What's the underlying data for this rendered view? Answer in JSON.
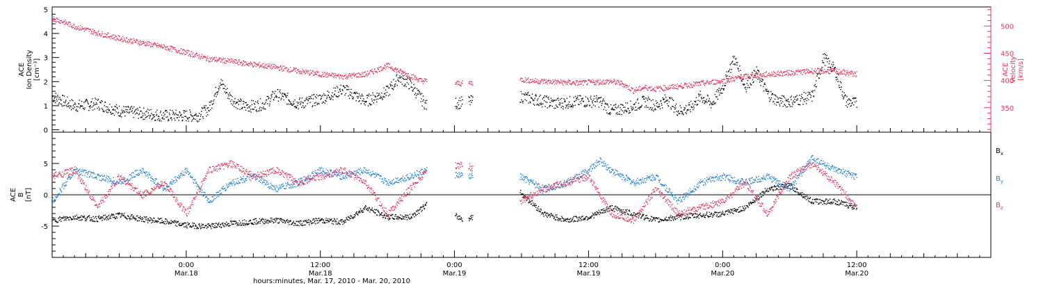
{
  "colors": {
    "axis": "#000000",
    "bx": "#000000",
    "by": "#1e7fe0",
    "bz": "#e8345c",
    "density": "#000000",
    "velocity": "#e8345c"
  },
  "x_axis": {
    "title": "hours:minutes, Mar. 17, 2010 - Mar. 20, 2010",
    "ticks": [
      {
        "time": "0:00",
        "date": "Mar.18",
        "hours": 24
      },
      {
        "time": "12:00",
        "date": "Mar.18",
        "hours": 36
      },
      {
        "time": "0:00",
        "date": "Mar.19",
        "hours": 48
      },
      {
        "time": "12:00",
        "date": "Mar.19",
        "hours": 60
      },
      {
        "time": "0:00",
        "date": "Mar.20",
        "hours": 72
      },
      {
        "time": "12:00",
        "date": "Mar.20",
        "hours": 84
      }
    ]
  },
  "chart_data": [
    {
      "type": "scatter",
      "panel": "top",
      "ylabel": [
        "ACE",
        "Ion Density",
        "[cm⁻³]"
      ],
      "y2label": [
        "ACE",
        "Velocity",
        "[km/s]"
      ],
      "xlim": [
        12,
        96
      ],
      "ylim": [
        -0.1,
        5.1
      ],
      "y2lim": [
        305,
        535
      ],
      "yticks": [
        "0",
        "1",
        "2",
        "3",
        "4",
        "5"
      ],
      "y2ticks": [
        "350",
        "400",
        "450",
        "500"
      ],
      "data_gaps_hours": [
        [
          45.5,
          48
        ],
        [
          48.7,
          49.2
        ],
        [
          49.6,
          53.8
        ]
      ],
      "series": [
        {
          "name": "Ion Density",
          "axis": "left",
          "x": [
            12,
            14,
            16,
            18,
            20,
            22,
            24,
            25,
            26,
            27,
            28,
            29,
            30,
            31,
            32,
            34,
            36,
            38,
            40,
            42,
            43,
            44,
            45,
            45.5,
            53.8,
            55,
            57,
            59,
            61,
            62,
            63,
            64,
            65,
            66,
            67,
            68,
            69,
            70,
            71,
            72,
            73,
            74,
            75,
            76,
            77,
            78,
            79,
            80,
            81,
            82,
            83,
            84
          ],
          "y": [
            1.4,
            1.0,
            1.1,
            0.8,
            0.7,
            0.6,
            0.6,
            0.6,
            0.9,
            2.0,
            1.3,
            1.0,
            1.0,
            1.1,
            1.5,
            1.1,
            1.3,
            1.7,
            1.2,
            1.6,
            2.2,
            1.9,
            1.3,
            1.0,
            1.4,
            1.3,
            1.1,
            1.2,
            1.2,
            0.8,
            0.9,
            1.0,
            1.2,
            1.0,
            1.3,
            0.8,
            0.9,
            1.4,
            1.1,
            1.8,
            3.0,
            1.8,
            2.4,
            1.5,
            1.2,
            1.2,
            1.3,
            1.4,
            3.0,
            2.5,
            1.2,
            1.1
          ]
        },
        {
          "name": "Velocity",
          "axis": "right",
          "x": [
            12,
            13,
            14,
            16,
            18,
            20,
            22,
            24,
            26,
            28,
            30,
            32,
            34,
            36,
            38,
            40,
            42,
            43,
            44,
            45,
            45.5,
            48.7,
            53.8,
            55,
            57,
            59,
            61,
            62,
            63,
            64,
            65,
            66,
            68,
            70,
            72,
            74,
            76,
            78,
            80,
            82,
            84
          ],
          "y": [
            515,
            508,
            500,
            488,
            478,
            470,
            462,
            452,
            440,
            436,
            430,
            425,
            418,
            412,
            408,
            412,
            428,
            418,
            410,
            400,
            400,
            395,
            403,
            400,
            398,
            396,
            398,
            399,
            395,
            382,
            388,
            385,
            390,
            395,
            400,
            408,
            412,
            415,
            418,
            418,
            412
          ]
        }
      ]
    },
    {
      "type": "scatter",
      "panel": "bottom",
      "ylabel": [
        "ACE",
        "B",
        "[nT]"
      ],
      "xlim": [
        12,
        96
      ],
      "ylim": [
        -10,
        10
      ],
      "yticks": [
        "-5",
        "0",
        "5"
      ],
      "legend": "right",
      "series": [
        {
          "name": "Bx",
          "legend_main": "B",
          "legend_sub": "x",
          "x": [
            12,
            14,
            16,
            18,
            20,
            22,
            24,
            26,
            28,
            30,
            32,
            34,
            36,
            38,
            40,
            42,
            44,
            45.5,
            49,
            53.8,
            56,
            58,
            60,
            62,
            64,
            66,
            68,
            70,
            72,
            74,
            76,
            78,
            80,
            82,
            84
          ],
          "y": [
            -4,
            -3.5,
            -3.8,
            -3.2,
            -3.8,
            -4.2,
            -4.8,
            -5,
            -4.5,
            -4.2,
            -4.0,
            -4.5,
            -4.0,
            -4.3,
            -2.0,
            -3.5,
            -3.5,
            -1.5,
            -4.0,
            0.5,
            -3.0,
            -4.0,
            -3.5,
            -2.0,
            -3.0,
            -4.0,
            -3.5,
            -3.2,
            -3.0,
            -2.0,
            1.0,
            1.5,
            -1.0,
            -1.0,
            -2.0
          ]
        },
        {
          "name": "By",
          "legend_main": "B",
          "legend_sub": "y",
          "x": [
            12,
            14,
            16,
            18,
            20,
            22,
            24,
            26,
            28,
            30,
            32,
            34,
            36,
            38,
            40,
            42,
            44,
            45.5,
            49,
            53.8,
            56,
            58,
            60,
            61,
            62,
            64,
            66,
            68,
            70,
            72,
            74,
            76,
            78,
            80,
            82,
            84
          ],
          "y": [
            -1,
            4,
            3,
            2,
            4,
            1,
            4,
            -1,
            2,
            3,
            1,
            2,
            4,
            3,
            4,
            2,
            3,
            4,
            3,
            3,
            1,
            2,
            4,
            5.5,
            4,
            2,
            3,
            -1,
            2,
            3,
            2,
            3,
            1,
            6,
            4,
            3
          ]
        },
        {
          "name": "Bz",
          "legend_main": "B",
          "legend_sub": "z",
          "x": [
            12,
            14,
            16,
            18,
            20,
            22,
            24,
            26,
            28,
            30,
            32,
            34,
            36,
            38,
            40,
            42,
            44,
            45.5,
            49,
            53.8,
            56,
            58,
            60,
            62,
            64,
            66,
            68,
            70,
            72,
            74,
            76,
            78,
            80,
            82,
            84
          ],
          "y": [
            3,
            4,
            -2,
            3,
            0,
            2,
            -3,
            4,
            5,
            3,
            4,
            2,
            3,
            4,
            2,
            -3,
            1,
            4,
            5,
            -1,
            1,
            2,
            3,
            -3,
            -4,
            1,
            -3,
            -2,
            -1,
            2,
            -3,
            3,
            5,
            2,
            -2
          ]
        }
      ]
    }
  ]
}
